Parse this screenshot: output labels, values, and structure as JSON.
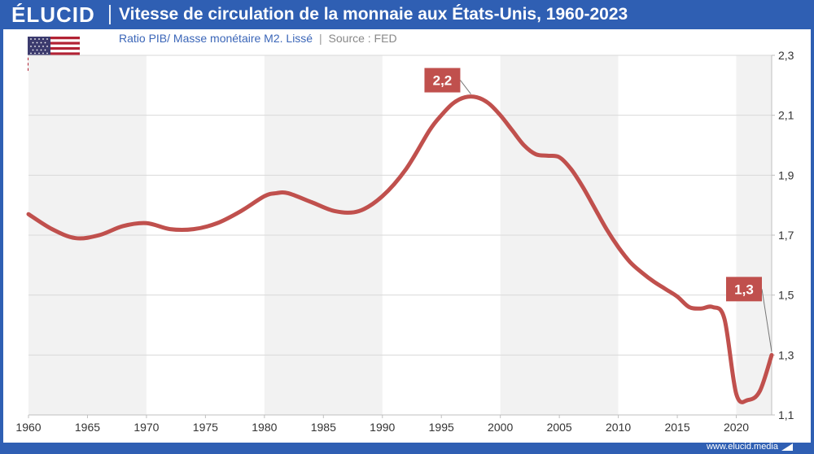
{
  "header": {
    "logo": "ÉLUCID",
    "title": "Vitesse de circulation de la monnaie aux États-Unis, 1960-2023"
  },
  "subtitle": {
    "text": "Ratio PIB/ Masse monétaire M2. Lissé",
    "separator": "|",
    "source": "Source : FED"
  },
  "footer": {
    "url": "www.elucid.media"
  },
  "colors": {
    "brand": "#2f5fb3",
    "line": "#c0504d",
    "band": "#f2f2f2",
    "grid": "#d9d9d9",
    "label_bg": "#c0504d",
    "label_text": "#ffffff",
    "axis_text": "#333333"
  },
  "chart_data": {
    "type": "line",
    "title": "Vitesse de circulation de la monnaie aux États-Unis, 1960-2023",
    "subtitle": "Ratio PIB/ Masse monétaire M2. Lissé",
    "xlabel": "",
    "ylabel": "",
    "xlim": [
      1960,
      2023
    ],
    "ylim": [
      1.1,
      2.3
    ],
    "x_ticks": [
      1960,
      1965,
      1970,
      1975,
      1980,
      1985,
      1990,
      1995,
      2000,
      2005,
      2010,
      2015,
      2020
    ],
    "x_tick_labels": [
      "1960",
      "1965",
      "1970",
      "1975",
      "1980",
      "1985",
      "1990",
      "1995",
      "2000",
      "2005",
      "2010",
      "2015",
      "2020"
    ],
    "y_ticks": [
      1.1,
      1.3,
      1.5,
      1.7,
      1.9,
      2.1,
      2.3
    ],
    "y_tick_labels": [
      "1,1",
      "1,3",
      "1,5",
      "1,7",
      "1,9",
      "2,1",
      "2,3"
    ],
    "y_axis_side": "right",
    "grid": true,
    "legend": "none",
    "series": [
      {
        "x": [
          1960,
          1962,
          1964,
          1966,
          1968,
          1970,
          1972,
          1974,
          1976,
          1978,
          1980,
          1981,
          1982,
          1984,
          1986,
          1988,
          1990,
          1992,
          1994,
          1995,
          1996,
          1997,
          1998,
          1999,
          2000,
          2001,
          2002,
          2003,
          2004,
          2005,
          2006,
          2007,
          2008,
          2009,
          2010,
          2011,
          2012,
          2013,
          2014,
          2015,
          2016,
          2017,
          2018,
          2019,
          2020,
          2021,
          2022,
          2023
        ],
        "values": [
          1.77,
          1.72,
          1.69,
          1.7,
          1.73,
          1.74,
          1.72,
          1.72,
          1.74,
          1.78,
          1.83,
          1.84,
          1.84,
          1.81,
          1.78,
          1.78,
          1.83,
          1.92,
          2.05,
          2.1,
          2.14,
          2.16,
          2.16,
          2.14,
          2.1,
          2.05,
          2.0,
          1.97,
          1.965,
          1.96,
          1.92,
          1.86,
          1.79,
          1.72,
          1.66,
          1.61,
          1.575,
          1.545,
          1.52,
          1.495,
          1.46,
          1.455,
          1.46,
          1.42,
          1.17,
          1.15,
          1.18,
          1.3
        ]
      }
    ],
    "annotations": [
      {
        "text": "2,2",
        "x": 1997.5,
        "y": 2.16
      },
      {
        "text": "1,3",
        "x": 2023,
        "y": 1.3
      }
    ]
  }
}
